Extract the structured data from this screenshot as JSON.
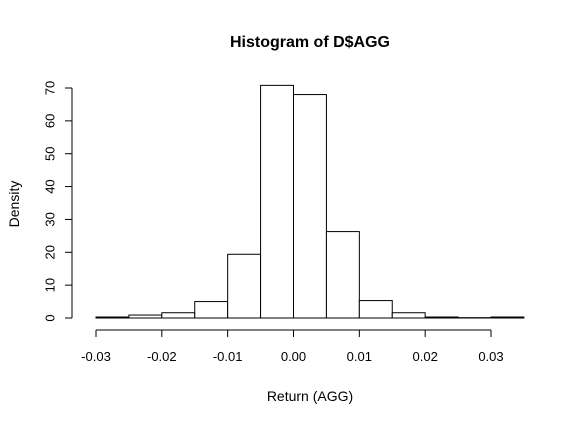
{
  "chart_data": {
    "type": "bar",
    "title": "Histogram of D$AGG",
    "xlabel": "Return (AGG)",
    "ylabel": "Density",
    "xlim": [
      -0.03,
      0.035
    ],
    "ylim": [
      0,
      70
    ],
    "bin_width": 0.005,
    "bins": [
      {
        "x0": -0.03,
        "x1": -0.025,
        "value": 0.3
      },
      {
        "x0": -0.025,
        "x1": -0.02,
        "value": 0.9
      },
      {
        "x0": -0.02,
        "x1": -0.015,
        "value": 1.6
      },
      {
        "x0": -0.015,
        "x1": -0.01,
        "value": 5.0
      },
      {
        "x0": -0.01,
        "x1": -0.005,
        "value": 19.4
      },
      {
        "x0": -0.005,
        "x1": 0.0,
        "value": 70.8
      },
      {
        "x0": 0.0,
        "x1": 0.005,
        "value": 68.0
      },
      {
        "x0": 0.005,
        "x1": 0.01,
        "value": 26.3
      },
      {
        "x0": 0.01,
        "x1": 0.015,
        "value": 5.3
      },
      {
        "x0": 0.015,
        "x1": 0.02,
        "value": 1.6
      },
      {
        "x0": 0.02,
        "x1": 0.025,
        "value": 0.3
      },
      {
        "x0": 0.025,
        "x1": 0.03,
        "value": 0.1
      },
      {
        "x0": 0.03,
        "x1": 0.035,
        "value": 0.3
      }
    ],
    "x_ticks": [
      {
        "value": -0.03,
        "label": "-0.03"
      },
      {
        "value": -0.02,
        "label": "-0.02"
      },
      {
        "value": -0.01,
        "label": "-0.01"
      },
      {
        "value": 0.0,
        "label": "0.00"
      },
      {
        "value": 0.01,
        "label": "0.01"
      },
      {
        "value": 0.02,
        "label": "0.02"
      },
      {
        "value": 0.03,
        "label": "0.03"
      }
    ],
    "y_ticks": [
      {
        "value": 0,
        "label": "0"
      },
      {
        "value": 10,
        "label": "10"
      },
      {
        "value": 20,
        "label": "20"
      },
      {
        "value": 30,
        "label": "30"
      },
      {
        "value": 40,
        "label": "40"
      },
      {
        "value": 50,
        "label": "50"
      },
      {
        "value": 60,
        "label": "60"
      },
      {
        "value": 70,
        "label": "70"
      }
    ],
    "grid": false,
    "bar_fill": "#ffffff",
    "bar_stroke": "#000000"
  }
}
